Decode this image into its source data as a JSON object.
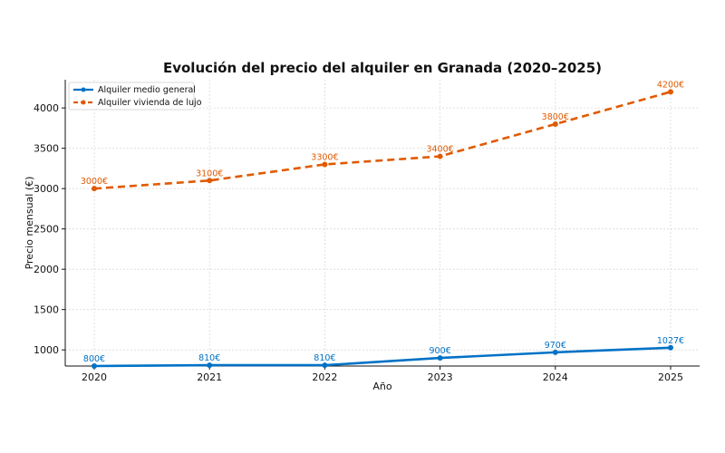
{
  "chart_data": {
    "type": "line",
    "title": "Evolución del precio del alquiler en Granada (2020–2025)",
    "xlabel": "Año",
    "ylabel": "Precio mensual (€)",
    "x": [
      2020,
      2021,
      2022,
      2023,
      2024,
      2025
    ],
    "ylim": [
      800,
      4350
    ],
    "yticks": [
      1000,
      1500,
      2000,
      2500,
      3000,
      3500,
      4000
    ],
    "grid": true,
    "legend_position": "top-left",
    "series": [
      {
        "name": "Alquiler medio general",
        "values": [
          800,
          810,
          810,
          900,
          970,
          1027
        ],
        "labels": [
          "800€",
          "810€",
          "810€",
          "900€",
          "970€",
          "1027€"
        ],
        "color": "#0072c6",
        "line_style": "solid"
      },
      {
        "name": "Alquiler vivienda de lujo",
        "values": [
          3000,
          3100,
          3300,
          3400,
          3800,
          4200
        ],
        "labels": [
          "3000€",
          "3100€",
          "3300€",
          "3400€",
          "3800€",
          "4200€"
        ],
        "color": "#e05a00",
        "line_style": "dashed"
      }
    ]
  }
}
